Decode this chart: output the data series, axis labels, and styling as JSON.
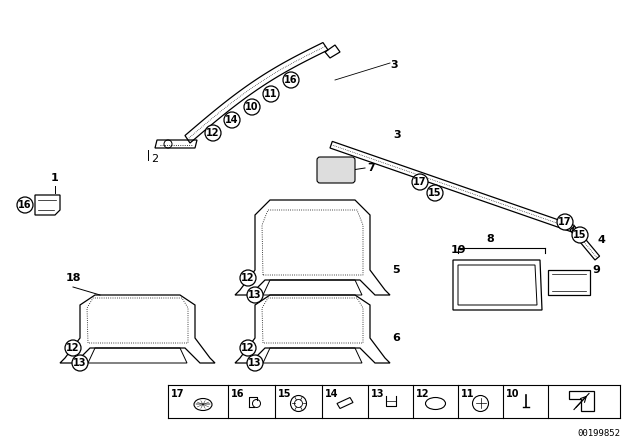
{
  "bg_color": "#ffffff",
  "line_color": "#000000",
  "fig_width": 6.4,
  "fig_height": 4.48,
  "dpi": 100,
  "part_number": "00199852"
}
